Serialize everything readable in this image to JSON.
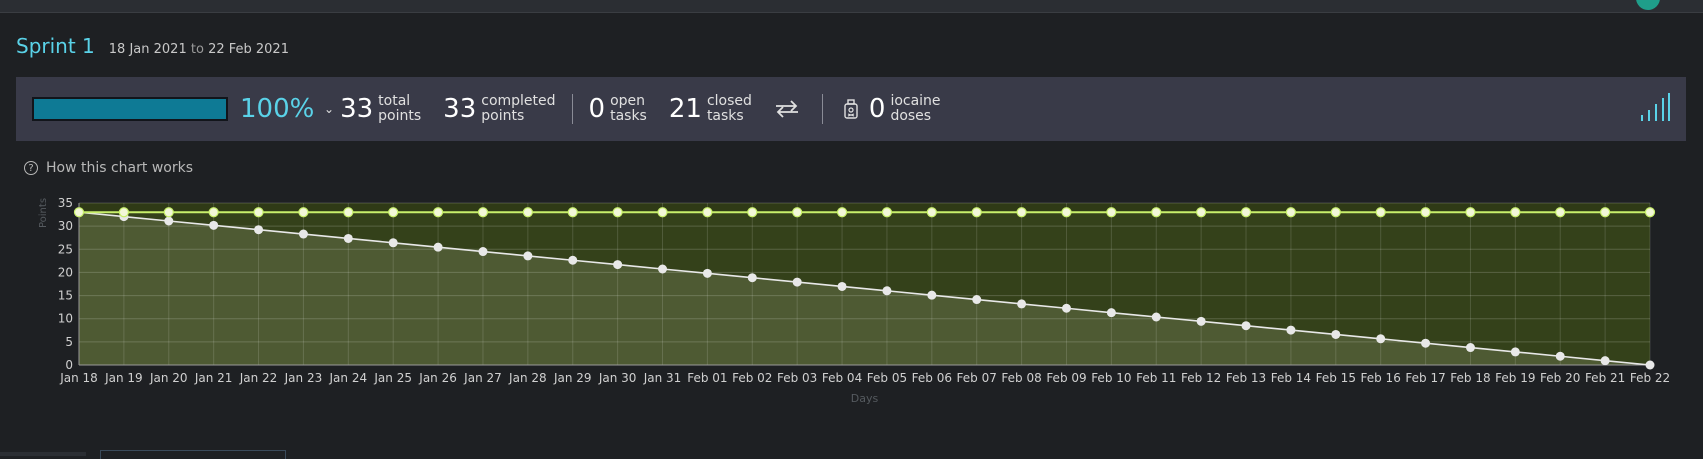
{
  "sprint": {
    "name": "Sprint 1",
    "start": "18 Jan 2021",
    "to_label": "to",
    "end": "22 Feb 2021"
  },
  "stats": {
    "progress_fraction": 1.0,
    "percent": "100%",
    "total_points": "33",
    "total_label_1": "total",
    "total_label_2": "points",
    "completed_points": "33",
    "completed_label_1": "completed",
    "completed_label_2": "points",
    "open_tasks": "0",
    "open_label_1": "open",
    "open_label_2": "tasks",
    "closed_tasks": "21",
    "closed_label_1": "closed",
    "closed_label_2": "tasks",
    "iocaine_doses": "0",
    "iocaine_label_1": "iocaine",
    "iocaine_label_2": "doses"
  },
  "help_link": "How this chart works",
  "icons": {
    "caret": "chevron-down-icon",
    "swap": "swap-arrows-icon",
    "poison": "poison-bottle-icon",
    "signal": "signal-bars-icon",
    "help": "question-circle-icon"
  },
  "colors": {
    "accent": "#5ad2e8",
    "progress_fill": "#0e7a95",
    "scope_line": "#c8ef6b",
    "ideal_line": "#e8e8e8",
    "plot_area": "#2f3a16",
    "under_ideal": "#4e5a33"
  },
  "chart_data": {
    "type": "line",
    "ylabel": "Points",
    "xlabel": "Days",
    "ylim": [
      0,
      35
    ],
    "yticks": [
      0,
      5,
      10,
      15,
      20,
      25,
      30,
      35
    ],
    "grid": true,
    "categories": [
      "Jan 18",
      "Jan 19",
      "Jan 20",
      "Jan 21",
      "Jan 22",
      "Jan 23",
      "Jan 24",
      "Jan 25",
      "Jan 26",
      "Jan 27",
      "Jan 28",
      "Jan 29",
      "Jan 30",
      "Jan 31",
      "Feb 01",
      "Feb 02",
      "Feb 03",
      "Feb 04",
      "Feb 05",
      "Feb 06",
      "Feb 07",
      "Feb 08",
      "Feb 09",
      "Feb 10",
      "Feb 11",
      "Feb 12",
      "Feb 13",
      "Feb 14",
      "Feb 15",
      "Feb 16",
      "Feb 17",
      "Feb 18",
      "Feb 19",
      "Feb 20",
      "Feb 21",
      "Feb 22"
    ],
    "series": [
      {
        "key": "scope",
        "values": [
          33,
          33,
          33,
          33,
          33,
          33,
          33,
          33,
          33,
          33,
          33,
          33,
          33,
          33,
          33,
          33,
          33,
          33,
          33,
          33,
          33,
          33,
          33,
          33,
          33,
          33,
          33,
          33,
          33,
          33,
          33,
          33,
          33,
          33,
          33,
          33
        ]
      },
      {
        "key": "ideal",
        "values": [
          33,
          32.06,
          31.11,
          30.17,
          29.23,
          28.29,
          27.34,
          26.4,
          25.46,
          24.51,
          23.57,
          22.63,
          21.69,
          20.74,
          19.8,
          18.86,
          17.91,
          16.97,
          16.03,
          15.09,
          14.14,
          13.2,
          12.26,
          11.31,
          10.37,
          9.43,
          8.49,
          7.54,
          6.6,
          5.66,
          4.71,
          3.77,
          2.83,
          1.89,
          0.94,
          0
        ]
      }
    ]
  }
}
